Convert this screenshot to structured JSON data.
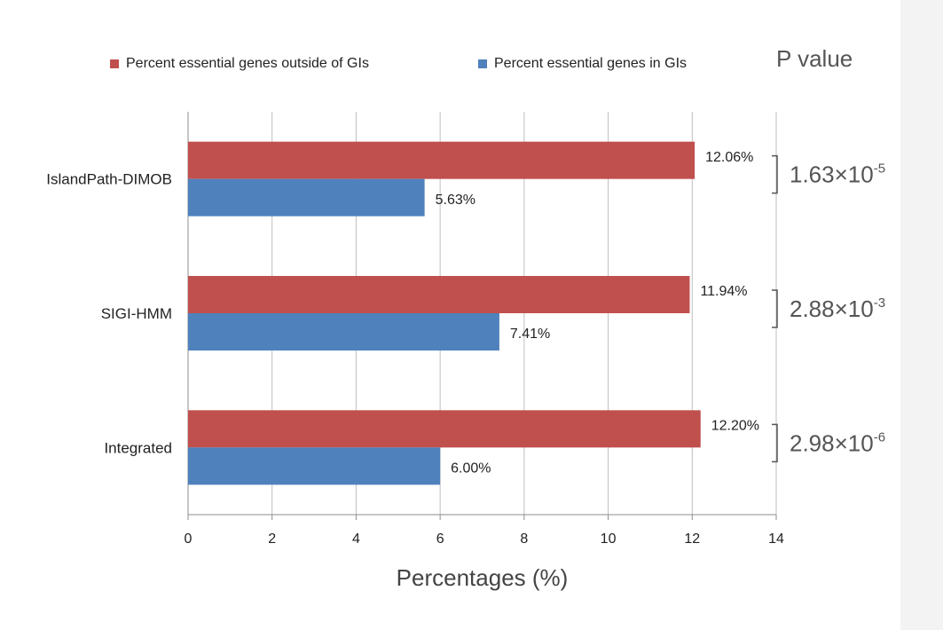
{
  "chart_data": {
    "type": "bar",
    "orientation": "horizontal",
    "categories": [
      "IslandPath-DIMOB",
      "SIGI-HMM",
      "Integrated"
    ],
    "series": [
      {
        "name": "Percent essential genes outside of GIs",
        "color": "#c0504d",
        "values": [
          12.06,
          11.94,
          12.2
        ],
        "labels": [
          "12.06%",
          "11.94%",
          "12.20%"
        ]
      },
      {
        "name": "Percent essential genes in GIs",
        "color": "#4f81bd",
        "values": [
          5.63,
          7.41,
          6.0
        ],
        "labels": [
          "5.63%",
          "7.41%",
          "6.00%"
        ]
      }
    ],
    "xlabel": "Percentages (%)",
    "xlim": [
      0,
      14
    ],
    "xticks": [
      0,
      2,
      4,
      6,
      8,
      10,
      12,
      14
    ],
    "grid": "vertical",
    "legend_placement": "top",
    "annotation_title": "P value",
    "p_values": [
      {
        "mantissa": "1.63×10",
        "exponent": "-5"
      },
      {
        "mantissa": "2.88×10",
        "exponent": "-3"
      },
      {
        "mantissa": "2.98×10",
        "exponent": "-6"
      }
    ]
  }
}
